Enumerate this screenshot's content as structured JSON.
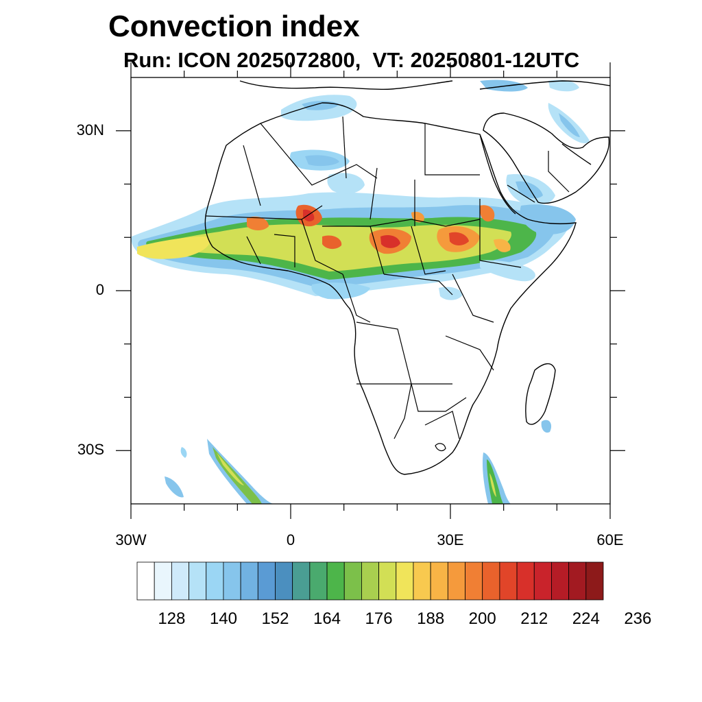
{
  "title": "Convection index",
  "subtitle": "Run: ICON 2025072800,  VT: 20250801-12UTC",
  "axes": {
    "lon_range": [
      -30,
      60
    ],
    "lat_range": [
      -40,
      40
    ],
    "y_ticks": [
      {
        "label": "30N",
        "lat": 30
      },
      {
        "label": "0",
        "lat": 0
      },
      {
        "label": "30S",
        "lat": -30
      }
    ],
    "x_ticks": [
      {
        "label": "30W",
        "lon": -30
      },
      {
        "label": "0",
        "lon": 0
      },
      {
        "label": "30E",
        "lon": 30
      },
      {
        "label": "60E",
        "lon": 60
      }
    ]
  },
  "colorbar": {
    "colors": [
      "#ffffff",
      "#e9f6fd",
      "#cfeafa",
      "#b5e2f7",
      "#9bd6f4",
      "#86c5ec",
      "#71b2e2",
      "#5a9bd4",
      "#4b8fbf",
      "#4a9e93",
      "#4aaa6e",
      "#4db54a",
      "#7cc04a",
      "#a9cf4f",
      "#d2df55",
      "#f0e45a",
      "#f8c94f",
      "#f8b446",
      "#f59a3c",
      "#f07f34",
      "#e9622c",
      "#e14529",
      "#d8302a",
      "#c9232b",
      "#b51c26",
      "#a21a21",
      "#8d1a1a"
    ],
    "labels": [
      "128",
      "140",
      "152",
      "164",
      "176",
      "188",
      "200",
      "212",
      "224",
      "236"
    ]
  }
}
